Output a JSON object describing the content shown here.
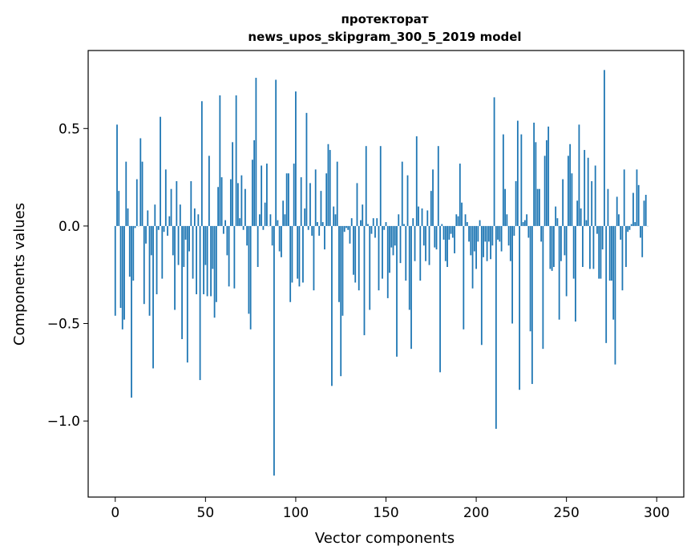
{
  "chart_data": {
    "type": "bar",
    "title_line1": "протекторат",
    "title_line2": "news_upos_skipgram_300_5_2019 model",
    "xlabel": "Vector components",
    "ylabel": "Components values",
    "xlim": [
      -15,
      315
    ],
    "ylim": [
      -1.39,
      0.9
    ],
    "xticks": [
      0,
      50,
      100,
      150,
      200,
      250,
      300
    ],
    "xtick_labels": [
      "0",
      "50",
      "100",
      "150",
      "200",
      "250",
      "300"
    ],
    "yticks": [
      -1.0,
      -0.5,
      0.0,
      0.5
    ],
    "ytick_labels": [
      "−1.0",
      "−0.5",
      "0.0",
      "0.5"
    ],
    "bar_color": "#1f77b4",
    "grid": false,
    "values": [
      -0.46,
      0.52,
      0.18,
      -0.42,
      -0.53,
      -0.48,
      0.33,
      0.09,
      -0.26,
      -0.88,
      -0.28,
      -0.01,
      0.24,
      0.0,
      0.45,
      0.33,
      -0.4,
      -0.09,
      0.08,
      -0.46,
      -0.15,
      -0.73,
      0.11,
      -0.35,
      -0.02,
      0.56,
      -0.27,
      -0.03,
      0.29,
      -0.05,
      0.05,
      0.19,
      -0.15,
      -0.43,
      0.23,
      -0.2,
      0.11,
      -0.58,
      -0.21,
      -0.07,
      -0.7,
      -0.13,
      0.23,
      -0.27,
      0.09,
      -0.35,
      0.06,
      -0.79,
      0.64,
      -0.35,
      -0.2,
      -0.36,
      0.36,
      -0.36,
      -0.22,
      -0.47,
      -0.39,
      0.2,
      0.67,
      0.25,
      -0.04,
      0.03,
      -0.15,
      -0.31,
      0.24,
      0.43,
      -0.32,
      0.67,
      0.22,
      0.04,
      0.26,
      -0.02,
      0.19,
      -0.1,
      -0.45,
      -0.53,
      0.34,
      0.44,
      0.76,
      -0.21,
      0.06,
      0.31,
      -0.02,
      0.12,
      0.32,
      0.0,
      0.06,
      -0.1,
      -1.28,
      0.75,
      0.03,
      -0.13,
      -0.16,
      0.13,
      0.06,
      0.27,
      0.27,
      -0.39,
      -0.29,
      0.32,
      0.69,
      -0.27,
      -0.31,
      0.25,
      -0.29,
      0.09,
      0.58,
      -0.02,
      0.22,
      -0.05,
      -0.33,
      0.29,
      0.02,
      -0.05,
      0.18,
      0.02,
      -0.12,
      0.27,
      0.42,
      0.39,
      -0.82,
      0.1,
      0.06,
      0.33,
      -0.39,
      -0.77,
      -0.46,
      -0.03,
      -0.01,
      -0.02,
      -0.09,
      0.04,
      -0.25,
      -0.29,
      0.22,
      -0.33,
      0.03,
      0.11,
      -0.56,
      0.41,
      0.01,
      -0.43,
      -0.04,
      0.04,
      -0.06,
      0.04,
      -0.33,
      0.41,
      -0.27,
      -0.02,
      0.02,
      -0.37,
      -0.24,
      -0.11,
      -0.15,
      -0.1,
      -0.67,
      0.06,
      -0.19,
      0.33,
      0.01,
      -0.28,
      0.26,
      -0.43,
      -0.63,
      0.04,
      -0.18,
      0.46,
      0.1,
      -0.28,
      0.09,
      -0.1,
      -0.18,
      0.08,
      -0.2,
      0.18,
      0.29,
      -0.11,
      -0.12,
      0.41,
      -0.75,
      0.01,
      -0.07,
      -0.18,
      -0.21,
      -0.07,
      -0.04,
      -0.06,
      -0.14,
      0.06,
      0.05,
      0.32,
      0.12,
      -0.53,
      0.06,
      0.02,
      -0.08,
      -0.15,
      -0.32,
      -0.13,
      -0.22,
      -0.08,
      0.03,
      -0.61,
      -0.16,
      -0.08,
      -0.18,
      -0.08,
      -0.17,
      -0.1,
      0.66,
      -1.04,
      -0.07,
      -0.08,
      -0.13,
      0.47,
      0.19,
      0.06,
      -0.1,
      -0.18,
      -0.5,
      -0.05,
      0.23,
      0.54,
      -0.84,
      0.47,
      0.02,
      0.03,
      0.06,
      -0.06,
      -0.54,
      -0.81,
      0.53,
      0.43,
      0.19,
      0.19,
      -0.08,
      -0.63,
      0.36,
      0.44,
      0.51,
      -0.22,
      -0.23,
      -0.21,
      0.1,
      0.04,
      -0.48,
      -0.18,
      0.24,
      -0.15,
      -0.36,
      0.36,
      0.42,
      0.27,
      -0.27,
      -0.49,
      0.13,
      0.52,
      0.09,
      -0.21,
      0.39,
      0.03,
      0.35,
      -0.22,
      0.23,
      -0.22,
      0.31,
      -0.04,
      -0.27,
      -0.27,
      -0.12,
      0.8,
      -0.6,
      0.19,
      -0.28,
      -0.28,
      -0.48,
      -0.71,
      0.15,
      0.06,
      -0.07,
      -0.33,
      0.29,
      -0.21,
      -0.03,
      -0.02,
      0.01,
      0.17,
      0.02,
      0.29,
      0.21,
      -0.06,
      -0.16,
      0.13,
      0.16,
      0.0
    ]
  }
}
